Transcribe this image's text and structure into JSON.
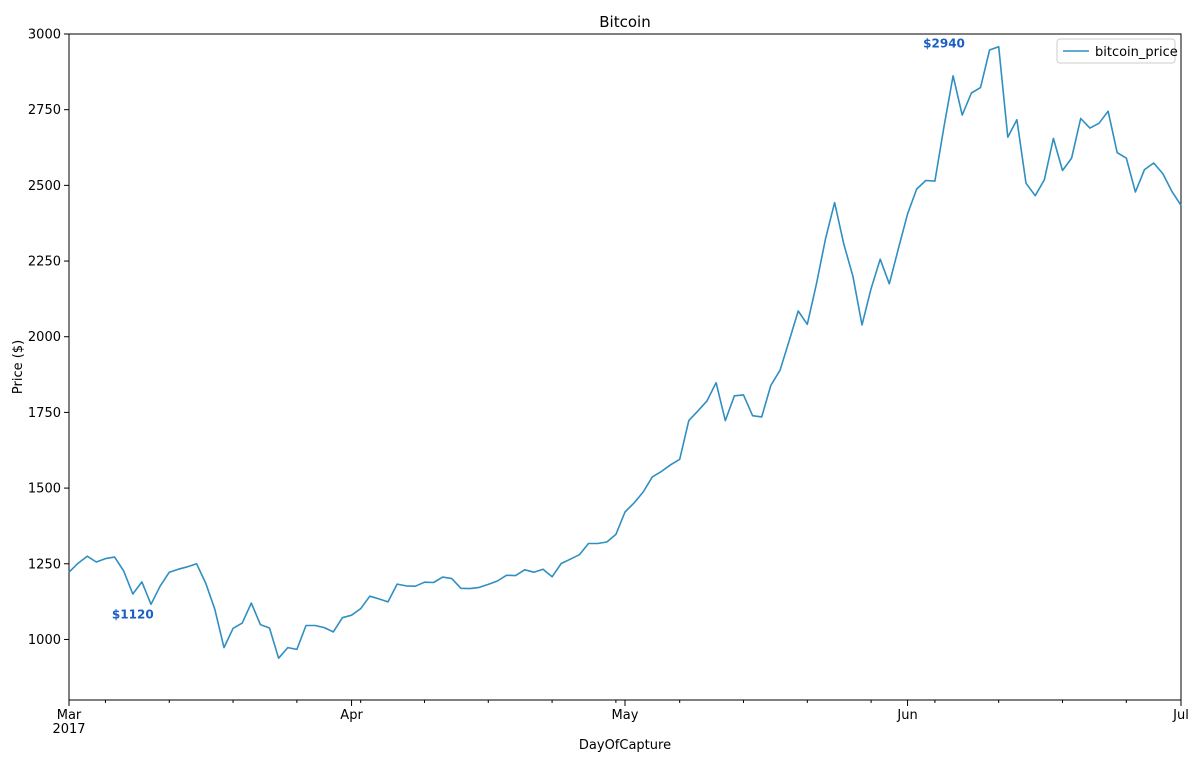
{
  "chart_data": {
    "type": "line",
    "title": "Bitcoin",
    "xlabel": "DayOfCapture",
    "ylabel": "Price ($)",
    "x_range": [
      "2017-03-01",
      "2017-07-01"
    ],
    "ylim": [
      800,
      3000
    ],
    "y_ticks": [
      1000,
      1250,
      1500,
      1750,
      2000,
      2250,
      2500,
      2750,
      3000
    ],
    "x_ticks": [
      {
        "date": "2017-03-01",
        "label": "Mar",
        "sublabel": "2017"
      },
      {
        "date": "2017-04-01",
        "label": "Apr",
        "sublabel": ""
      },
      {
        "date": "2017-05-01",
        "label": "May",
        "sublabel": ""
      },
      {
        "date": "2017-06-01",
        "label": "Jun",
        "sublabel": ""
      },
      {
        "date": "2017-07-01",
        "label": "Jul",
        "sublabel": ""
      }
    ],
    "grid": false,
    "legend_position": "top-right",
    "line_color": "#2f8fc2",
    "annotation_color": "#1a5fc4",
    "series": [
      {
        "name": "bitcoin_price",
        "x": [
          "2017-03-01",
          "2017-03-02",
          "2017-03-03",
          "2017-03-04",
          "2017-03-05",
          "2017-03-06",
          "2017-03-07",
          "2017-03-08",
          "2017-03-09",
          "2017-03-10",
          "2017-03-11",
          "2017-03-12",
          "2017-03-13",
          "2017-03-14",
          "2017-03-15",
          "2017-03-16",
          "2017-03-17",
          "2017-03-18",
          "2017-03-19",
          "2017-03-20",
          "2017-03-21",
          "2017-03-22",
          "2017-03-23",
          "2017-03-24",
          "2017-03-25",
          "2017-03-26",
          "2017-03-27",
          "2017-03-28",
          "2017-03-29",
          "2017-03-30",
          "2017-03-31",
          "2017-04-01",
          "2017-04-02",
          "2017-04-03",
          "2017-04-04",
          "2017-04-05",
          "2017-04-06",
          "2017-04-07",
          "2017-04-08",
          "2017-04-09",
          "2017-04-10",
          "2017-04-11",
          "2017-04-12",
          "2017-04-13",
          "2017-04-14",
          "2017-04-15",
          "2017-04-16",
          "2017-04-17",
          "2017-04-18",
          "2017-04-19",
          "2017-04-20",
          "2017-04-21",
          "2017-04-22",
          "2017-04-23",
          "2017-04-24",
          "2017-04-25",
          "2017-04-26",
          "2017-04-27",
          "2017-04-28",
          "2017-04-29",
          "2017-04-30",
          "2017-05-01",
          "2017-05-02",
          "2017-05-03",
          "2017-05-04",
          "2017-05-05",
          "2017-05-06",
          "2017-05-07",
          "2017-05-08",
          "2017-05-09",
          "2017-05-10",
          "2017-05-11",
          "2017-05-12",
          "2017-05-13",
          "2017-05-14",
          "2017-05-15",
          "2017-05-16",
          "2017-05-17",
          "2017-05-18",
          "2017-05-19",
          "2017-05-20",
          "2017-05-21",
          "2017-05-22",
          "2017-05-23",
          "2017-05-24",
          "2017-05-25",
          "2017-05-26",
          "2017-05-27",
          "2017-05-28",
          "2017-05-29",
          "2017-05-30",
          "2017-05-31",
          "2017-06-01",
          "2017-06-02",
          "2017-06-03",
          "2017-06-04",
          "2017-06-05",
          "2017-06-06",
          "2017-06-07",
          "2017-06-08",
          "2017-06-09",
          "2017-06-10",
          "2017-06-11",
          "2017-06-12",
          "2017-06-13",
          "2017-06-14",
          "2017-06-15",
          "2017-06-16",
          "2017-06-17",
          "2017-06-18",
          "2017-06-19",
          "2017-06-20",
          "2017-06-21",
          "2017-06-22",
          "2017-06-23",
          "2017-06-24",
          "2017-06-25",
          "2017-06-26",
          "2017-06-27",
          "2017-06-28",
          "2017-06-29",
          "2017-06-30",
          "2017-07-01"
        ],
        "y": [
          1222,
          1252,
          1275,
          1256,
          1267,
          1272,
          1226,
          1150,
          1190,
          1116,
          1176,
          1222,
          1232,
          1240,
          1250,
          1186,
          1100,
          973,
          1037,
          1054,
          1120,
          1049,
          1038,
          938,
          973,
          967,
          1046,
          1046,
          1039,
          1025,
          1072,
          1080,
          1102,
          1143,
          1134,
          1124,
          1183,
          1177,
          1176,
          1189,
          1188,
          1206,
          1201,
          1169,
          1168,
          1172,
          1182,
          1193,
          1212,
          1211,
          1230,
          1222,
          1232,
          1207,
          1251,
          1265,
          1280,
          1317,
          1317,
          1322,
          1347,
          1421,
          1451,
          1487,
          1537,
          1555,
          1577,
          1595,
          1723,
          1755,
          1788,
          1848,
          1723,
          1805,
          1808,
          1739,
          1735,
          1839,
          1889,
          1986,
          2085,
          2041,
          2174,
          2323,
          2443,
          2306,
          2200,
          2039,
          2159,
          2256,
          2175,
          2291,
          2406,
          2488,
          2516,
          2514,
          2694,
          2862,
          2732,
          2805,
          2823,
          2947,
          2958,
          2659,
          2717,
          2507,
          2466,
          2518,
          2655,
          2549,
          2590,
          2721,
          2689,
          2705,
          2745,
          2608,
          2590,
          2478,
          2552,
          2574,
          2539,
          2480,
          2434
        ]
      }
    ],
    "annotations": [
      {
        "label": "$1120",
        "date": "2017-03-08",
        "value": 1070
      },
      {
        "label": "$2940",
        "date": "2017-06-05",
        "value": 2955
      }
    ]
  }
}
